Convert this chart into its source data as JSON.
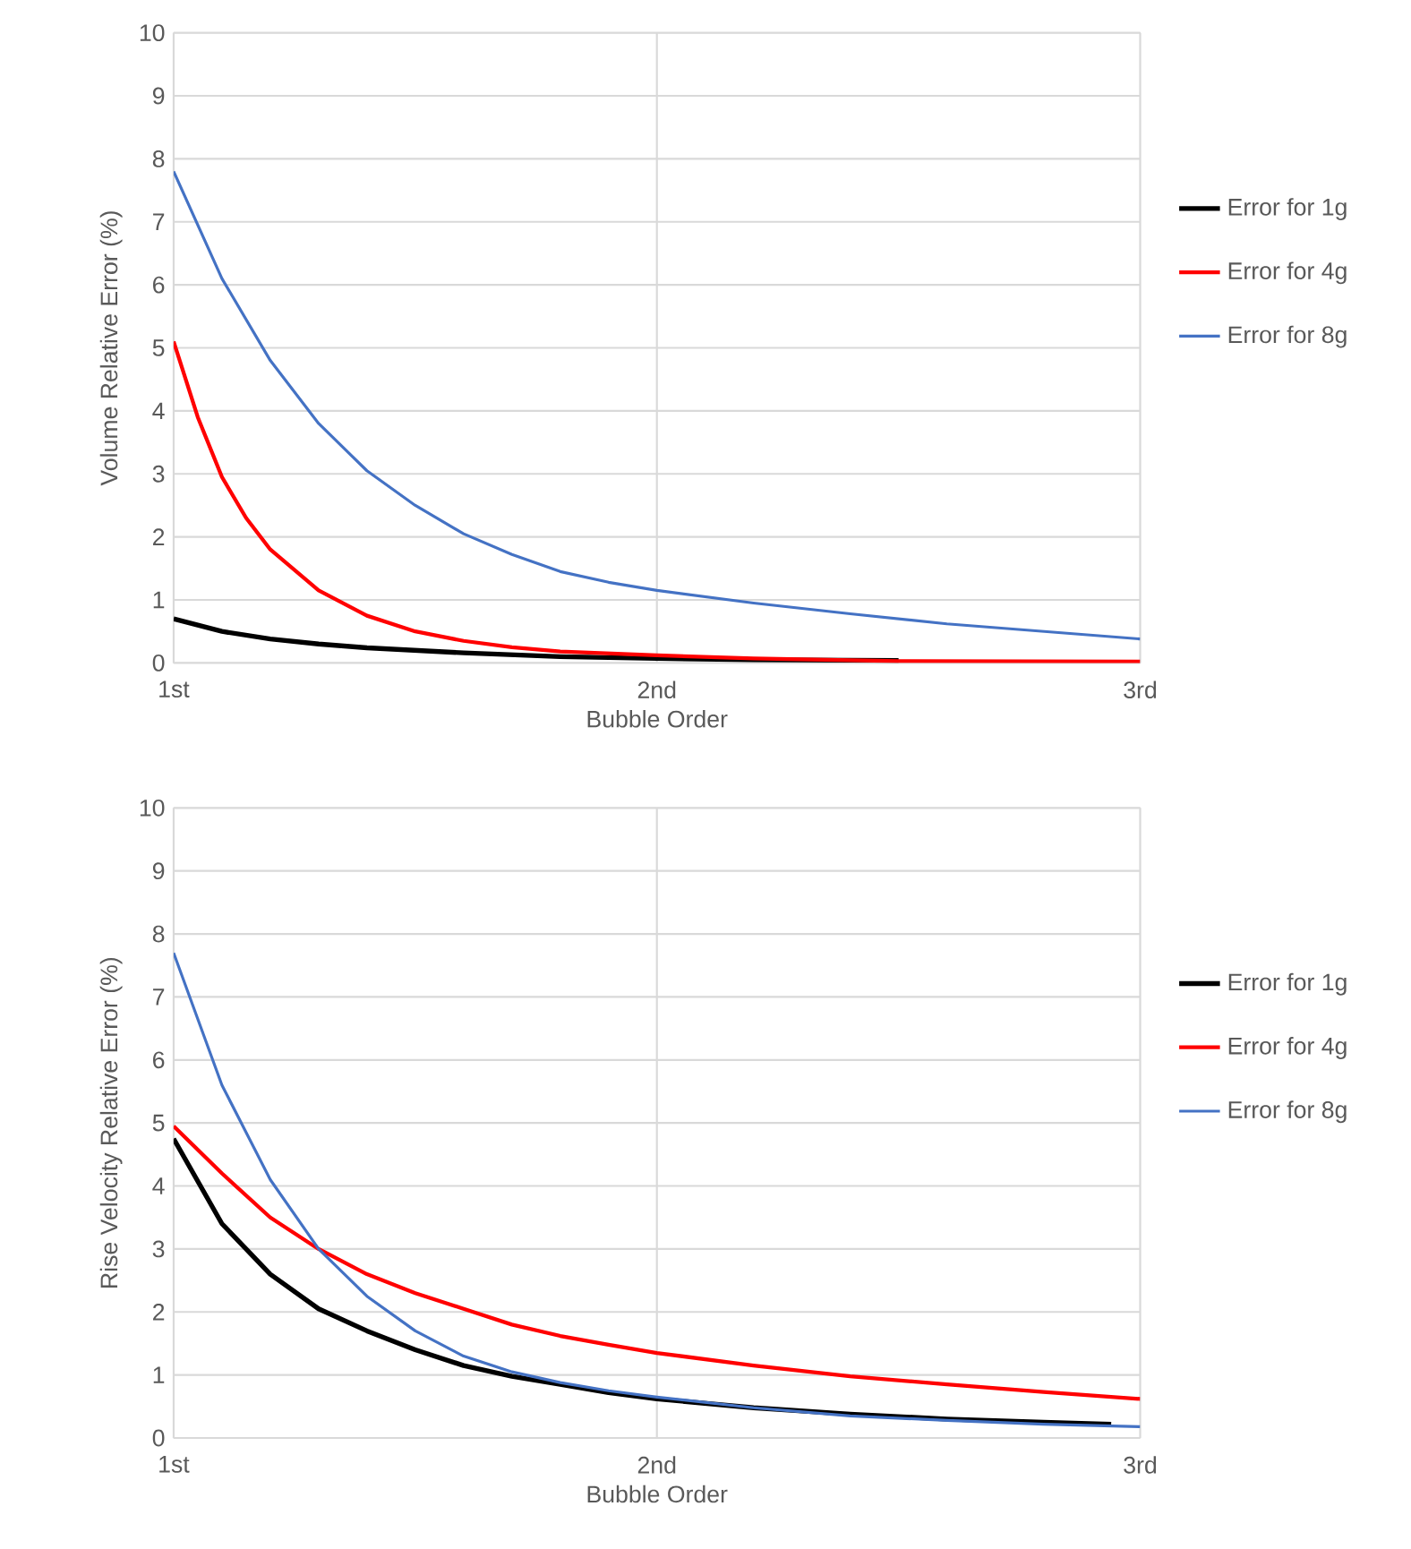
{
  "chart_data": [
    {
      "type": "line",
      "xlabel": "Bubble Order",
      "ylabel": "Volume Relative Error (%)",
      "xlim": [
        1,
        3
      ],
      "ylim": [
        0,
        10
      ],
      "xticks": [
        {
          "value": 1,
          "label": "1st"
        },
        {
          "value": 2,
          "label": "2nd"
        },
        {
          "value": 3,
          "label": "3rd"
        }
      ],
      "yticks": [
        0,
        1,
        2,
        3,
        4,
        5,
        6,
        7,
        8,
        9,
        10
      ],
      "grid": true,
      "legend": "right",
      "marker": "none",
      "series": [
        {
          "name": "Error for 1g",
          "color": "#000000",
          "x": [
            1,
            1.1,
            1.2,
            1.3,
            1.4,
            1.6,
            1.8,
            2,
            2.2,
            2.5
          ],
          "values": [
            0.7,
            0.5,
            0.38,
            0.3,
            0.24,
            0.16,
            0.1,
            0.07,
            0.05,
            0.04
          ]
        },
        {
          "name": "Error for 4g",
          "color": "#ff0000",
          "x": [
            1,
            1.05,
            1.1,
            1.15,
            1.2,
            1.3,
            1.4,
            1.5,
            1.6,
            1.7,
            1.8,
            2,
            2.2,
            2.5,
            3
          ],
          "values": [
            5.1,
            3.9,
            2.95,
            2.3,
            1.8,
            1.15,
            0.75,
            0.5,
            0.35,
            0.25,
            0.18,
            0.12,
            0.07,
            0.03,
            0.02
          ]
        },
        {
          "name": "Error for 8g",
          "color": "#4472c4",
          "x": [
            1,
            1.1,
            1.2,
            1.3,
            1.4,
            1.5,
            1.6,
            1.7,
            1.8,
            1.9,
            2,
            2.2,
            2.4,
            2.6,
            2.8,
            3
          ],
          "values": [
            7.8,
            6.1,
            4.8,
            3.8,
            3.05,
            2.5,
            2.05,
            1.72,
            1.45,
            1.28,
            1.15,
            0.95,
            0.78,
            0.62,
            0.5,
            0.38
          ]
        }
      ]
    },
    {
      "type": "line",
      "xlabel": "Bubble Order",
      "ylabel": "Rise Velocity Relative Error (%)",
      "xlim": [
        1,
        3
      ],
      "ylim": [
        0,
        10
      ],
      "xticks": [
        {
          "value": 1,
          "label": "1st"
        },
        {
          "value": 2,
          "label": "2nd"
        },
        {
          "value": 3,
          "label": "3rd"
        }
      ],
      "yticks": [
        0,
        1,
        2,
        3,
        4,
        5,
        6,
        7,
        8,
        9,
        10
      ],
      "grid": true,
      "legend": "right",
      "marker": "none",
      "series": [
        {
          "name": "Error for 1g",
          "color": "#000000",
          "x": [
            1,
            1.1,
            1.2,
            1.3,
            1.4,
            1.5,
            1.6,
            1.7,
            1.8,
            1.9,
            2,
            2.2,
            2.4,
            2.6,
            2.8,
            2.94
          ],
          "values": [
            4.75,
            3.4,
            2.6,
            2.05,
            1.7,
            1.4,
            1.15,
            0.98,
            0.85,
            0.72,
            0.62,
            0.48,
            0.38,
            0.3,
            0.25,
            0.22
          ]
        },
        {
          "name": "Error for 4g",
          "color": "#ff0000",
          "x": [
            1,
            1.1,
            1.2,
            1.3,
            1.4,
            1.5,
            1.6,
            1.7,
            1.8,
            1.9,
            2,
            2.2,
            2.4,
            2.6,
            2.8,
            3
          ],
          "values": [
            4.95,
            4.2,
            3.5,
            3.0,
            2.6,
            2.3,
            2.05,
            1.8,
            1.62,
            1.48,
            1.35,
            1.15,
            0.98,
            0.85,
            0.73,
            0.62
          ]
        },
        {
          "name": "Error for 8g",
          "color": "#4472c4",
          "x": [
            1,
            1.1,
            1.2,
            1.3,
            1.4,
            1.5,
            1.6,
            1.7,
            1.8,
            1.9,
            2,
            2.2,
            2.4,
            2.6,
            2.8,
            3
          ],
          "values": [
            7.7,
            5.6,
            4.1,
            3.0,
            2.25,
            1.7,
            1.3,
            1.05,
            0.88,
            0.75,
            0.65,
            0.48,
            0.35,
            0.28,
            0.22,
            0.18
          ]
        }
      ]
    }
  ]
}
